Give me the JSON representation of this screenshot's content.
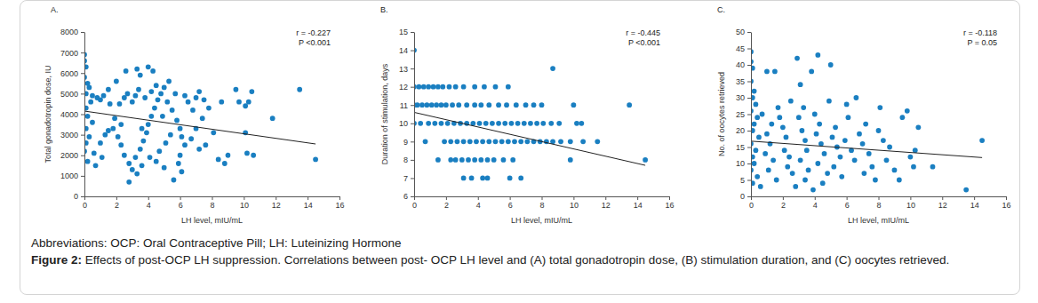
{
  "chart_data": [
    {
      "type": "scatter",
      "panel_label": "A.",
      "x_label": "LH level, mIU/mL",
      "y_label": "Total gonadotropin dose, IU",
      "annotations": [
        "r = -0.227",
        "P <0.001"
      ],
      "xlim": [
        0,
        16
      ],
      "xticks": [
        0,
        2,
        4,
        6,
        8,
        10,
        12,
        14,
        16
      ],
      "ylim": [
        0,
        8000
      ],
      "yticks": [
        0,
        1000,
        2000,
        3000,
        4000,
        5000,
        6000,
        7000,
        8000
      ],
      "series": [
        {
          "type": "scatter",
          "color": "#1a7fc1",
          "marker": "circle",
          "x": [
            0,
            0,
            0.1,
            0,
            0.2,
            0.3,
            0.1,
            0.5,
            0.8,
            1,
            0.4,
            1.2,
            1.5,
            2,
            2.6,
            3.3,
            3.5,
            4,
            4.3,
            1.6,
            0.1,
            0.2,
            0.5,
            0.1,
            0.3,
            0.1,
            0,
            0.2,
            0.6,
            1,
            1.3,
            1.5,
            1.8,
            2.1,
            2.3,
            2.5,
            2.8,
            3,
            2.8,
            3.2,
            3.5,
            3.7,
            3.9,
            4,
            4.2,
            4.4,
            4.6,
            4.8,
            5,
            5.2,
            5.5,
            5.8,
            6,
            6.1,
            6.3,
            6,
            5.9,
            6.1,
            5.6,
            4.5,
            4.1,
            3.6,
            3.3,
            4.7,
            5.1,
            5.4,
            2.2,
            2.5,
            2.7,
            3,
            3.2,
            3.4,
            3.8,
            4.2,
            4.5,
            5.3,
            5.7,
            6.5,
            6.8,
            7,
            7.2,
            7.5,
            7.8,
            7.4,
            7,
            6.7,
            7.2,
            7.6,
            8.1,
            8.4,
            8.8,
            9,
            8.6,
            9.5,
            9.7,
            10.1,
            10.3,
            10.2,
            10.6,
            10.5,
            11.8,
            10.1,
            13.5,
            14.5,
            1.9,
            2.3,
            3.6,
            4.9,
            6.3,
            5,
            1.1,
            0.7
          ],
          "values": [
            6900,
            6600,
            6300,
            5800,
            5500,
            5300,
            5000,
            4900,
            4800,
            4700,
            4600,
            4900,
            5200,
            5600,
            6100,
            6200,
            5900,
            6300,
            6100,
            4500,
            4300,
            3900,
            3600,
            3300,
            2900,
            2600,
            2200,
            1700,
            2100,
            2600,
            3000,
            3200,
            3300,
            2900,
            2500,
            2000,
            1600,
            1300,
            700,
            1900,
            2300,
            2700,
            3100,
            3500,
            3900,
            4300,
            4700,
            5000,
            5300,
            4600,
            4200,
            3700,
            3300,
            2900,
            2500,
            2000,
            1600,
            1200,
            800,
            1700,
            1900,
            1500,
            1100,
            2200,
            2600,
            3000,
            4500,
            4800,
            5000,
            4600,
            4900,
            5200,
            4800,
            5100,
            5400,
            5600,
            5000,
            4600,
            4200,
            4800,
            5100,
            4700,
            4300,
            3800,
            3300,
            2800,
            2300,
            2500,
            3100,
            1800,
            1600,
            2000,
            4600,
            5200,
            4600,
            4400,
            4600,
            2100,
            2000,
            5100,
            3800,
            3100,
            5200,
            1800,
            3800,
            3500,
            3300,
            3900,
            4900,
            1400,
            1900,
            1500
          ]
        },
        {
          "type": "line",
          "color": "#222222",
          "line_style": "solid",
          "x": [
            0,
            14.5
          ],
          "values": [
            4150,
            2550
          ]
        }
      ]
    },
    {
      "type": "scatter",
      "panel_label": "B.",
      "x_label": "LH level, mIU/mL",
      "y_label": "Duration of stimulation, days",
      "annotations": [
        "r = -0.445",
        "P <0.001"
      ],
      "xlim": [
        0,
        16
      ],
      "xticks": [
        0,
        2,
        4,
        6,
        8,
        10,
        12,
        14,
        16
      ],
      "ylim": [
        6,
        15
      ],
      "yticks": [
        6,
        7,
        8,
        9,
        10,
        11,
        12,
        13,
        14,
        15
      ],
      "series": [
        {
          "type": "scatter",
          "color": "#1a7fc1",
          "marker": "circle",
          "x": [
            0,
            0,
            0.3,
            0.6,
            0.9,
            1.2,
            1.5,
            1.8,
            2.2,
            2.6,
            3.1,
            3.8,
            4.4,
            5.1,
            5.9,
            0,
            0.2,
            0.5,
            0.8,
            1.1,
            1.4,
            1.7,
            2,
            2.4,
            2.8,
            3.3,
            3.8,
            4.2,
            4.7,
            5.3,
            5.8,
            6.4,
            7,
            7.5,
            8,
            10,
            13.5,
            0,
            0.4,
            0.9,
            1.3,
            1.7,
            2.1,
            2.5,
            2.9,
            3.3,
            3.7,
            4.1,
            4.5,
            4.9,
            5.3,
            5.7,
            6.1,
            6.5,
            6.9,
            7.3,
            7.7,
            8.1,
            8.6,
            9.1,
            10.2,
            10.5,
            0.7,
            1.9,
            2.3,
            2.7,
            3.1,
            3.5,
            3.9,
            4.3,
            4.7,
            5.1,
            5.5,
            5.9,
            6.3,
            6.7,
            7.1,
            7.5,
            7.9,
            8.3,
            8.7,
            9.2,
            9.8,
            10.6,
            11.5,
            1.5,
            2.3,
            2.6,
            3,
            3.4,
            3.8,
            4.2,
            4.6,
            5,
            5.6,
            6.2,
            9.8,
            14.5,
            8.7,
            3.1,
            3.6,
            4.3,
            4.6,
            6,
            6.7
          ],
          "values": [
            14,
            12,
            12,
            12,
            12,
            12,
            12,
            12,
            12,
            12,
            12,
            12,
            12,
            12,
            12,
            11,
            11,
            11,
            11,
            11,
            11,
            11,
            11,
            11,
            11,
            11,
            11,
            11,
            11,
            11,
            11,
            11,
            11,
            11,
            11,
            11,
            11,
            10,
            10,
            10,
            10,
            10,
            10,
            10,
            10,
            10,
            10,
            10,
            10,
            10,
            10,
            10,
            10,
            10,
            10,
            10,
            10,
            10,
            10,
            10,
            10,
            10,
            9,
            9,
            9,
            9,
            9,
            9,
            9,
            9,
            9,
            9,
            9,
            9,
            9,
            9,
            9,
            9,
            9,
            9,
            9,
            9,
            9,
            9,
            9,
            8,
            8,
            8,
            8,
            8,
            8,
            8,
            8,
            8,
            8,
            8,
            8,
            8,
            13,
            7,
            7,
            7,
            7,
            7,
            7
          ]
        },
        {
          "type": "line",
          "color": "#222222",
          "line_style": "solid",
          "x": [
            0,
            14.5
          ],
          "values": [
            10.6,
            7.7
          ]
        }
      ]
    },
    {
      "type": "scatter",
      "panel_label": "C.",
      "x_label": "LH level, mIU/mL",
      "y_label": "No. of oocytes retrieved",
      "annotations": [
        "r = -0.118",
        "P = 0.05"
      ],
      "xlim": [
        0,
        16
      ],
      "xticks": [
        0,
        2,
        4,
        6,
        8,
        10,
        12,
        14,
        16
      ],
      "ylim": [
        0,
        50
      ],
      "yticks": [
        0,
        5,
        10,
        15,
        20,
        25,
        30,
        35,
        40,
        45,
        50
      ],
      "series": [
        {
          "type": "scatter",
          "color": "#1a7fc1",
          "marker": "circle",
          "x": [
            0,
            0,
            0.1,
            0,
            0.2,
            0.1,
            0.3,
            0,
            0.4,
            0.2,
            0.1,
            0.5,
            0,
            0.3,
            0.1,
            0.2,
            0,
            0.4,
            0.1,
            0.6,
            1,
            1.5,
            1.3,
            1,
            1.2,
            0.9,
            1.4,
            1.1,
            1.6,
            1.8,
            2,
            2.2,
            2.1,
            2.4,
            2.3,
            2.6,
            2.8,
            2.9,
            3.1,
            3.3,
            3,
            3.2,
            3.4,
            3.5,
            3.1,
            3.6,
            3.4,
            3.9,
            3.8,
            4.2,
            4,
            4.3,
            4.1,
            4.4,
            4.6,
            4.2,
            4.8,
            4.5,
            4.9,
            5,
            5.3,
            5.1,
            5.4,
            5.6,
            5.2,
            5.7,
            5.9,
            6.1,
            6.3,
            6.5,
            6,
            6.8,
            7,
            7.2,
            7.4,
            7.6,
            7.1,
            7.8,
            6.6,
            8,
            8.3,
            8.5,
            8.7,
            9,
            9.3,
            9.5,
            9.8,
            10,
            10.2,
            10.5,
            11.4,
            10.3,
            13.5,
            14.5,
            8.1,
            2.5,
            1.7,
            0.7
          ],
          "values": [
            44,
            41,
            39,
            35,
            32,
            30,
            28,
            26,
            24,
            22,
            20,
            18,
            16,
            14,
            12,
            10,
            8,
            6,
            4,
            3,
            38,
            38,
            22,
            19,
            16,
            13,
            11,
            8,
            5,
            24,
            21,
            18,
            14,
            12,
            9,
            7,
            3,
            42,
            34,
            27,
            24,
            20,
            17,
            14,
            11,
            8,
            5,
            2,
            38,
            43,
            25,
            22,
            19,
            16,
            13,
            10,
            7,
            4,
            29,
            40,
            21,
            18,
            15,
            12,
            9,
            6,
            17,
            24,
            14,
            11,
            28,
            19,
            16,
            22,
            13,
            9,
            7,
            5,
            30,
            20,
            17,
            11,
            15,
            8,
            5,
            24,
            26,
            12,
            9,
            21,
            9,
            14,
            2,
            17,
            27,
            29,
            27,
            25
          ]
        },
        {
          "type": "line",
          "color": "#222222",
          "line_style": "solid",
          "x": [
            0,
            14.5
          ],
          "values": [
            16.8,
            11.8
          ]
        }
      ]
    }
  ],
  "figure": {
    "abbreviations": "Abbreviations: OCP: Oral Contraceptive Pill; LH: Luteinizing Hormone",
    "caption_label": "Figure 2:",
    "caption": "Effects of post-OCP LH suppression. Correlations between post- OCP LH level and (A) total gonadotropin dose, (B) stimulation duration, and (C) oocytes retrieved."
  }
}
